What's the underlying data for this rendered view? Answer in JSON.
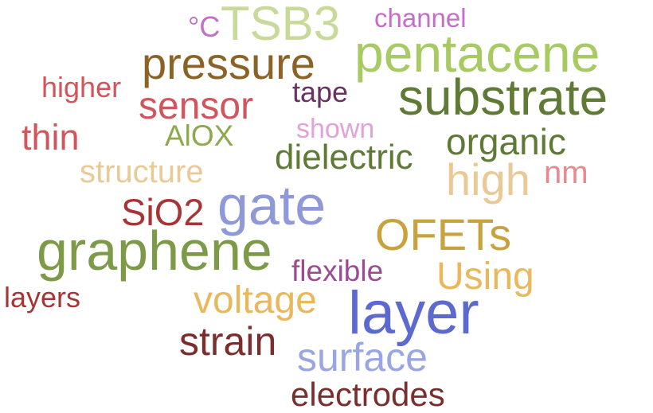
{
  "words": {
    "tsb3": {
      "text": "TSB3",
      "color": "#c8d99a"
    },
    "channel": {
      "text": "channel",
      "color": "#c46fc6"
    },
    "celsius": {
      "text": "°C",
      "color": "#c46fc6"
    },
    "pressure": {
      "text": "pressure",
      "color": "#8b6326"
    },
    "pentacene": {
      "text": "pentacene",
      "color": "#a8ca62"
    },
    "higher": {
      "text": "higher",
      "color": "#d0555d"
    },
    "tape": {
      "text": "tape",
      "color": "#6a3163"
    },
    "substrate": {
      "text": "substrate",
      "color": "#5f7a34"
    },
    "sensor": {
      "text": "sensor",
      "color": "#d0555d"
    },
    "thin": {
      "text": "thin",
      "color": "#d0555d"
    },
    "shown": {
      "text": "shown",
      "color": "#e3a1d9"
    },
    "alox": {
      "text": "AlOX",
      "color": "#8ea84d"
    },
    "organic": {
      "text": "organic",
      "color": "#5f7a34"
    },
    "dielectric": {
      "text": "dielectric",
      "color": "#5f7a34"
    },
    "structure": {
      "text": "structure",
      "color": "#e9c995"
    },
    "high": {
      "text": "high",
      "color": "#e9c995"
    },
    "nm": {
      "text": "nm",
      "color": "#e68a8e"
    },
    "gate": {
      "text": "gate",
      "color": "#8f99d8"
    },
    "sio2": {
      "text": "SiO2",
      "color": "#a83536"
    },
    "ofets": {
      "text": "OFETs",
      "color": "#c7a23d"
    },
    "graphene": {
      "text": "graphene",
      "color": "#7d9a48"
    },
    "flexible": {
      "text": "flexible",
      "color": "#9c4a92"
    },
    "using": {
      "text": "Using",
      "color": "#eab85c"
    },
    "layers": {
      "text": "layers",
      "color": "#a83536"
    },
    "voltage": {
      "text": "voltage",
      "color": "#eab85c"
    },
    "layer": {
      "text": "layer",
      "color": "#5c6ad0"
    },
    "strain": {
      "text": "strain",
      "color": "#7a2e2e"
    },
    "surface": {
      "text": "surface",
      "color": "#9aa6e4"
    },
    "electrodes": {
      "text": "electrodes",
      "color": "#7a2e2e"
    }
  }
}
